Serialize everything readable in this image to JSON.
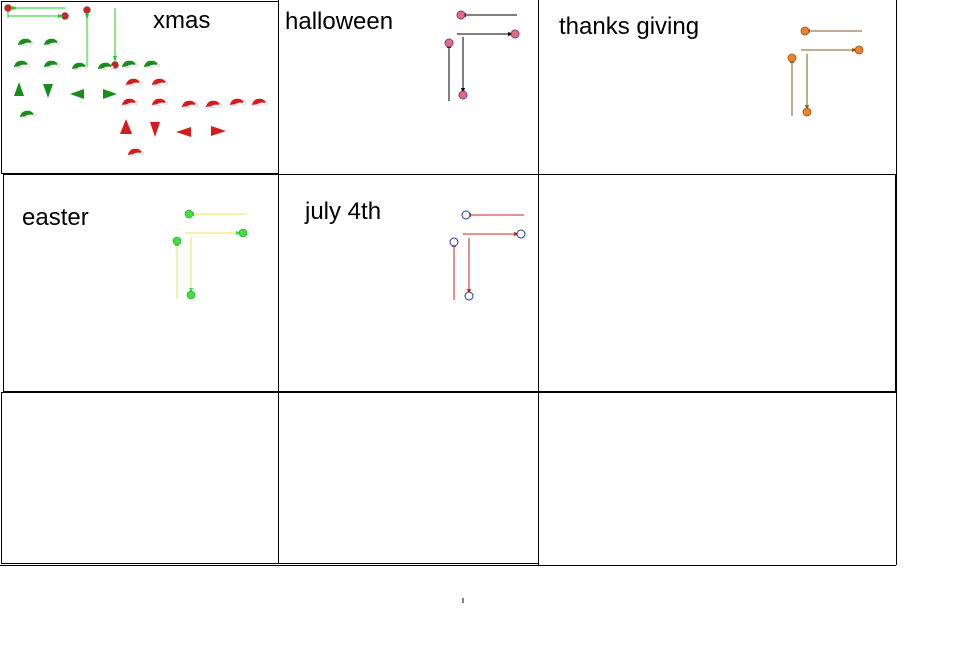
{
  "cells": {
    "xmas": "xmas",
    "halloween": "halloween",
    "thanksgiving": "thanks giving",
    "easter": "easter",
    "july4": "july 4th"
  },
  "colors": {
    "xmas_line": "#22cc22",
    "xmas_dot": "#cc2222",
    "xmas_green": "#1a8c1a",
    "xmas_red": "#d41c1c",
    "halloween_line": "#000000",
    "halloween_dot": "#e86a7a",
    "halloween_ring": "#6a3da8",
    "thanksgiving_line": "#8a5a1a",
    "thanksgiving_dot": "#f08030",
    "easter_line": "#e6e65a",
    "easter_dot": "#44dd44",
    "july_line": "#cc2222",
    "july_ring": "#2233aa"
  }
}
